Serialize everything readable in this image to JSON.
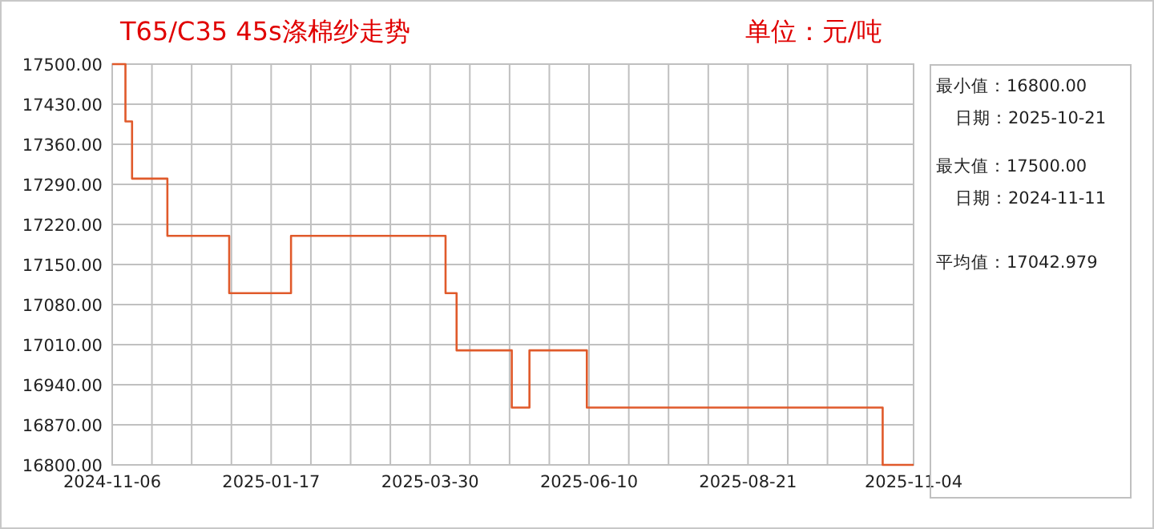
{
  "chart_data": {
    "type": "step",
    "title": "T65/C35 45s涤棉纱走势",
    "subtitle": "单位：元/吨",
    "x": [
      "2024-11-06",
      "2024-11-11",
      "2024-11-12",
      "2024-11-15",
      "2024-12-01",
      "2024-12-29",
      "2025-01-26",
      "2025-04-06",
      "2025-04-11",
      "2025-05-06",
      "2025-05-14",
      "2025-06-09",
      "2025-10-21",
      "2025-11-04"
    ],
    "series": [
      {
        "color": "#e05a2b",
        "values": [
          17500,
          17500,
          17400,
          17300,
          17200,
          17100,
          17200,
          17100,
          17000,
          16900,
          17000,
          16900,
          16800,
          16800
        ]
      }
    ],
    "xlim": [
      "2024-11-06",
      "2025-11-04"
    ],
    "xticks": [
      {
        "value": "2024-11-06",
        "label": "2024-11-06"
      },
      {
        "value": "2024-11-24",
        "label": null
      },
      {
        "value": "2024-12-12",
        "label": null
      },
      {
        "value": "2024-12-30",
        "label": null
      },
      {
        "value": "2025-01-17",
        "label": "2025-01-17"
      },
      {
        "value": "2025-02-04",
        "label": null
      },
      {
        "value": "2025-02-22",
        "label": null
      },
      {
        "value": "2025-03-12",
        "label": null
      },
      {
        "value": "2025-03-30",
        "label": "2025-03-30"
      },
      {
        "value": "2025-04-17",
        "label": null
      },
      {
        "value": "2025-05-05",
        "label": null
      },
      {
        "value": "2025-05-23",
        "label": null
      },
      {
        "value": "2025-06-10",
        "label": "2025-06-10"
      },
      {
        "value": "2025-06-28",
        "label": null
      },
      {
        "value": "2025-07-16",
        "label": null
      },
      {
        "value": "2025-08-03",
        "label": null
      },
      {
        "value": "2025-08-21",
        "label": "2025-08-21"
      },
      {
        "value": "2025-09-08",
        "label": null
      },
      {
        "value": "2025-09-26",
        "label": null
      },
      {
        "value": "2025-10-14",
        "label": null
      },
      {
        "value": "2025-11-04",
        "label": "2025-11-04"
      }
    ],
    "ylim": [
      16800,
      17500
    ],
    "yticks": [
      {
        "value": 16800,
        "label": "16800.00"
      },
      {
        "value": 16870,
        "label": "16870.00"
      },
      {
        "value": 16940,
        "label": "16940.00"
      },
      {
        "value": 17010,
        "label": "17010.00"
      },
      {
        "value": 17080,
        "label": "17080.00"
      },
      {
        "value": 17150,
        "label": "17150.00"
      },
      {
        "value": 17220,
        "label": "17220.00"
      },
      {
        "value": 17290,
        "label": "17290.00"
      },
      {
        "value": 17360,
        "label": "17360.00"
      },
      {
        "value": 17430,
        "label": "17430.00"
      },
      {
        "value": 17500,
        "label": "17500.00"
      }
    ],
    "grid": true,
    "annotations": [
      "最小值：16800.00",
      "日期：2025-10-21",
      "最大值：17500.00",
      "日期：2024-11-11",
      "平均值：17042.979"
    ]
  }
}
